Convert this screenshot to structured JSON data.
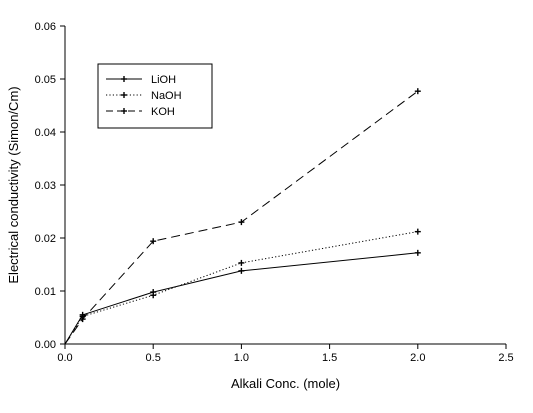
{
  "chart_data": {
    "type": "line",
    "title": "",
    "xlabel": "Alkali Conc. (mole)",
    "ylabel": "Electrical conductivity (Simon/Cm)",
    "xlim": [
      0,
      2.5
    ],
    "ylim": [
      0,
      0.06
    ],
    "xticks": [
      "0.0",
      "0.5",
      "1.0",
      "1.5",
      "2.0",
      "2.5"
    ],
    "yticks": [
      "0.00",
      "0.01",
      "0.02",
      "0.03",
      "0.04",
      "0.05",
      "0.06"
    ],
    "grid": false,
    "legend_position": "top-left",
    "series": [
      {
        "name": "LiOH",
        "line_style": "solid",
        "x": [
          0.0,
          0.1,
          0.5,
          1.0,
          2.0
        ],
        "y": [
          0.0,
          0.0055,
          0.0098,
          0.0138,
          0.0172
        ]
      },
      {
        "name": "NaOH",
        "line_style": "dotted",
        "x": [
          0.0,
          0.1,
          0.5,
          1.0,
          2.0
        ],
        "y": [
          0.0,
          0.0052,
          0.0092,
          0.0153,
          0.0212
        ]
      },
      {
        "name": "KOH",
        "line_style": "dashed",
        "x": [
          0.0,
          0.1,
          0.5,
          1.0,
          2.0
        ],
        "y": [
          0.0,
          0.0047,
          0.0194,
          0.023,
          0.0477
        ]
      }
    ]
  }
}
